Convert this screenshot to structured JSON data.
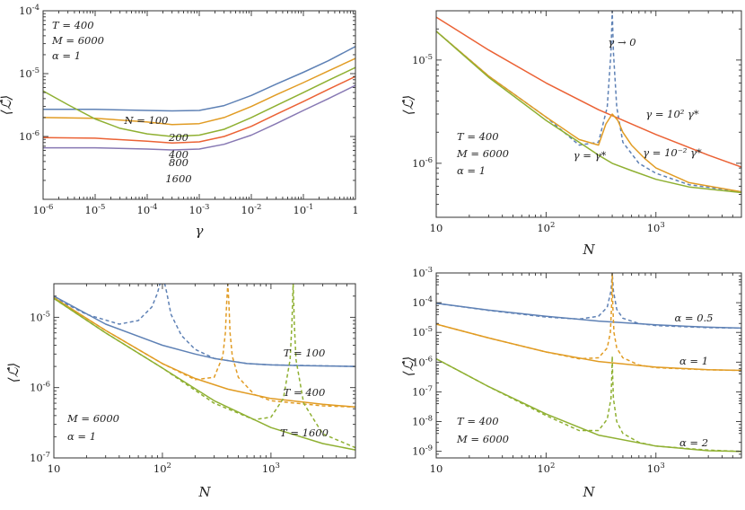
{
  "chart_data": [
    {
      "type": "line",
      "xscale": "log",
      "yscale": "log",
      "xlim": [
        1e-06,
        1
      ],
      "ylim": [
        1e-07,
        0.0001
      ],
      "xlabel": "γ",
      "ylabel": "⟨ℒ̂⟩",
      "xticks": [
        {
          "v": 1e-06,
          "b": "10",
          "e": "-6"
        },
        {
          "v": 1e-05,
          "b": "10",
          "e": "-5"
        },
        {
          "v": 0.0001,
          "b": "10",
          "e": "-4"
        },
        {
          "v": 0.001,
          "b": "10",
          "e": "-3"
        },
        {
          "v": 0.01,
          "b": "10",
          "e": "-2"
        },
        {
          "v": 0.1,
          "b": "10",
          "e": "-1"
        },
        {
          "v": 1,
          "b": "1",
          "e": ""
        }
      ],
      "yticks": [
        {
          "v": 1e-06,
          "b": "10",
          "e": "-6"
        },
        {
          "v": 1e-05,
          "b": "10",
          "e": "-5"
        },
        {
          "v": 0.0001,
          "b": "10",
          "e": "-4"
        }
      ],
      "params": [
        "T = 400",
        "M = 6000",
        "α = 1"
      ],
      "series": [
        {
          "name": "N = 100",
          "color": "#5e81b5",
          "dash": false,
          "x": [
            1e-06,
            1e-05,
            0.0001,
            0.0003,
            0.001,
            0.003,
            0.01,
            0.03,
            0.1,
            0.3,
            1
          ],
          "y": [
            2.7e-06,
            2.7e-06,
            2.6e-06,
            2.55e-06,
            2.6e-06,
            3.1e-06,
            4.5e-06,
            6.8e-06,
            1.05e-05,
            1.6e-05,
            2.7e-05
          ]
        },
        {
          "name": "200",
          "color": "#e19c24",
          "dash": false,
          "x": [
            1e-06,
            1e-05,
            0.0001,
            0.0003,
            0.001,
            0.003,
            0.01,
            0.03,
            0.1,
            0.3,
            1
          ],
          "y": [
            2e-06,
            1.95e-06,
            1.7e-06,
            1.55e-06,
            1.6e-06,
            2e-06,
            3e-06,
            4.6e-06,
            7.2e-06,
            1.1e-05,
            1.75e-05
          ]
        },
        {
          "name": "400",
          "color": "#8fb032",
          "dash": false,
          "x": [
            1e-06,
            3e-06,
            1e-05,
            3e-05,
            0.0001,
            0.0003,
            0.001,
            0.003,
            0.01,
            0.03,
            0.1,
            0.3,
            1
          ],
          "y": [
            5.3e-06,
            3.2e-06,
            1.9e-06,
            1.35e-06,
            1.1e-06,
            1e-06,
            1.05e-06,
            1.3e-06,
            2e-06,
            3.1e-06,
            5e-06,
            7.8e-06,
            1.25e-05
          ]
        },
        {
          "name": "800",
          "color": "#eb6235",
          "dash": false,
          "x": [
            1e-06,
            1e-05,
            0.0001,
            0.0003,
            0.001,
            0.003,
            0.01,
            0.03,
            0.1,
            0.3,
            1
          ],
          "y": [
            9.6e-07,
            9.4e-07,
            8.4e-07,
            7.9e-07,
            8.2e-07,
            1e-06,
            1.45e-06,
            2.25e-06,
            3.6e-06,
            5.6e-06,
            9e-06
          ]
        },
        {
          "name": "1600",
          "color": "#8778b3",
          "dash": false,
          "x": [
            1e-06,
            1e-05,
            0.0001,
            0.0003,
            0.001,
            0.003,
            0.01,
            0.03,
            0.1,
            0.3,
            1
          ],
          "y": [
            6.6e-07,
            6.6e-07,
            6.3e-07,
            6.1e-07,
            6.3e-07,
            7.5e-07,
            1.05e-06,
            1.6e-06,
            2.6e-06,
            4e-06,
            6.5e-06
          ]
        }
      ]
    },
    {
      "type": "line",
      "xscale": "log",
      "yscale": "log",
      "xlim": [
        10,
        6000
      ],
      "ylim": [
        3e-07,
        3e-05
      ],
      "xlabel": "N",
      "ylabel": "⟨ℒ̂⟩",
      "xticks": [
        {
          "v": 10,
          "b": "10",
          "e": ""
        },
        {
          "v": 100,
          "b": "10",
          "e": "2"
        },
        {
          "v": 1000,
          "b": "10",
          "e": "3"
        }
      ],
      "yticks": [
        {
          "v": 1e-06,
          "b": "10",
          "e": "-6"
        },
        {
          "v": 1e-05,
          "b": "10",
          "e": "-5"
        }
      ],
      "params": [
        "T = 400",
        "M = 6000",
        "α = 1"
      ],
      "labels": [
        "γ → 0",
        "γ = 10² γ*",
        "γ = 10⁻² γ*",
        "γ = γ*"
      ],
      "series": [
        {
          "name": "γ → 0",
          "color": "#5e81b5",
          "dash": true,
          "x": [
            10,
            30,
            100,
            200,
            300,
            360,
            390,
            400,
            410,
            440,
            500,
            700,
            1000,
            2000,
            6000
          ],
          "y": [
            1.9e-05,
            7e-06,
            2.8e-06,
            1.5e-06,
            1.6e-06,
            3.5e-06,
            1.2e-05,
            3e-05,
            1.2e-05,
            3.5e-06,
            1.6e-06,
            1e-06,
            8e-07,
            6.2e-07,
            5.3e-07
          ]
        },
        {
          "name": "γ = 10² γ*",
          "color": "#eb6235",
          "dash": false,
          "x": [
            10,
            30,
            100,
            300,
            1000,
            3000,
            6000
          ],
          "y": [
            2.6e-05,
            1.25e-05,
            6e-06,
            3.3e-06,
            1.9e-06,
            1.2e-06,
            9.2e-07
          ]
        },
        {
          "name": "γ = 10⁻² γ*",
          "color": "#e19c24",
          "dash": false,
          "x": [
            10,
            30,
            100,
            200,
            300,
            350,
            400,
            450,
            500,
            600,
            800,
            1000,
            2000,
            6000
          ],
          "y": [
            1.9e-05,
            7e-06,
            2.8e-06,
            1.7e-06,
            1.5e-06,
            2.4e-06,
            3e-06,
            2.6e-06,
            2e-06,
            1.5e-06,
            1.1e-06,
            9e-07,
            6.5e-07,
            5.3e-07
          ]
        },
        {
          "name": "γ = γ*",
          "color": "#8fb032",
          "dash": false,
          "x": [
            10,
            30,
            100,
            200,
            300,
            400,
            600,
            1000,
            2000,
            6000
          ],
          "y": [
            1.9e-05,
            6.8e-06,
            2.6e-06,
            1.6e-06,
            1.2e-06,
            1e-06,
            8.5e-07,
            7e-07,
            5.9e-07,
            5.2e-07
          ]
        }
      ]
    },
    {
      "type": "line",
      "xscale": "log",
      "yscale": "log",
      "xlim": [
        10,
        6000
      ],
      "ylim": [
        1e-07,
        3e-05
      ],
      "xlabel": "N",
      "ylabel": "⟨ℒ̂⟩",
      "xticks": [
        {
          "v": 10,
          "b": "10",
          "e": ""
        },
        {
          "v": 100,
          "b": "10",
          "e": "2"
        },
        {
          "v": 1000,
          "b": "10",
          "e": "3"
        }
      ],
      "yticks": [
        {
          "v": 1e-07,
          "b": "10",
          "e": "-7"
        },
        {
          "v": 1e-06,
          "b": "10",
          "e": "-6"
        },
        {
          "v": 1e-05,
          "b": "10",
          "e": "-5"
        }
      ],
      "params": [
        "M = 6000",
        "α = 1"
      ],
      "labels": [
        "T = 100",
        "T = 400",
        "T = 1600"
      ],
      "series": [
        {
          "name": "T = 100",
          "color": "#5e81b5",
          "dash": false,
          "x": [
            10,
            30,
            100,
            200,
            300,
            600,
            1000,
            2000,
            6000
          ],
          "y": [
            2e-05,
            8e-06,
            4e-06,
            3e-06,
            2.6e-06,
            2.2e-06,
            2.1e-06,
            2.05e-06,
            2e-06
          ]
        },
        {
          "name": "",
          "color": "#5e81b5",
          "dash": true,
          "x": [
            10,
            20,
            40,
            60,
            80,
            90,
            95,
            100,
            105,
            110,
            120,
            150,
            200,
            300,
            600,
            1000,
            6000
          ],
          "y": [
            1.9e-05,
            1.1e-05,
            8e-06,
            9e-06,
            1.4e-05,
            2.2e-05,
            3e-05,
            3e-05,
            3e-05,
            2.2e-05,
            1.1e-05,
            5.5e-06,
            3.5e-06,
            2.6e-06,
            2.2e-06,
            2.1e-06,
            2e-06
          ]
        },
        {
          "name": "T = 400",
          "color": "#e19c24",
          "dash": false,
          "x": [
            10,
            30,
            100,
            200,
            400,
            1000,
            3000,
            6000
          ],
          "y": [
            1.9e-05,
            6.5e-06,
            2.2e-06,
            1.35e-06,
            9.5e-07,
            7e-07,
            5.8e-07,
            5.3e-07
          ]
        },
        {
          "name": "",
          "color": "#e19c24",
          "dash": true,
          "x": [
            10,
            30,
            100,
            200,
            300,
            360,
            380,
            390,
            400,
            410,
            420,
            440,
            500,
            700,
            1000,
            3000,
            6000
          ],
          "y": [
            1.9e-05,
            6.5e-06,
            2.2e-06,
            1.3e-06,
            1.4e-06,
            2.8e-06,
            6e-06,
            1.5e-05,
            3e-05,
            1.5e-05,
            6e-06,
            2.8e-06,
            1.4e-06,
            8e-07,
            6.5e-07,
            5.5e-07,
            5.3e-07
          ]
        },
        {
          "name": "T = 1600",
          "color": "#8fb032",
          "dash": false,
          "x": [
            10,
            30,
            100,
            300,
            1000,
            3000,
            6000
          ],
          "y": [
            1.85e-05,
            6e-06,
            1.9e-06,
            6.5e-07,
            2.7e-07,
            1.6e-07,
            1.3e-07
          ]
        },
        {
          "name": "",
          "color": "#8fb032",
          "dash": true,
          "x": [
            10,
            30,
            100,
            300,
            700,
            1000,
            1300,
            1500,
            1560,
            1600,
            1640,
            1700,
            2000,
            3000,
            6000
          ],
          "y": [
            1.85e-05,
            6e-06,
            1.9e-06,
            6e-07,
            3.5e-07,
            3.8e-07,
            7e-07,
            2.5e-06,
            8e-06,
            3e-05,
            8e-06,
            2.5e-06,
            6e-07,
            2.2e-07,
            1.4e-07
          ]
        }
      ]
    },
    {
      "type": "line",
      "xscale": "log",
      "yscale": "log",
      "xlim": [
        10,
        6000
      ],
      "ylim": [
        6e-10,
        0.001
      ],
      "xlabel": "N",
      "ylabel": "⟨ℒ̂⟩",
      "xticks": [
        {
          "v": 10,
          "b": "10",
          "e": ""
        },
        {
          "v": 100,
          "b": "10",
          "e": "2"
        },
        {
          "v": 1000,
          "b": "10",
          "e": "3"
        }
      ],
      "yticks": [
        {
          "v": 1e-09,
          "b": "10",
          "e": "-9"
        },
        {
          "v": 1e-08,
          "b": "10",
          "e": "-8"
        },
        {
          "v": 1e-07,
          "b": "10",
          "e": "-7"
        },
        {
          "v": 1e-06,
          "b": "10",
          "e": "-6"
        },
        {
          "v": 1e-05,
          "b": "10",
          "e": "-5"
        },
        {
          "v": 0.0001,
          "b": "10",
          "e": "-4"
        },
        {
          "v": 0.001,
          "b": "10",
          "e": "-3"
        }
      ],
      "params": [
        "T = 400",
        "M = 6000"
      ],
      "labels": [
        "α = 0.5",
        "α = 1",
        "α = 2"
      ],
      "series": [
        {
          "name": "α = 0.5",
          "color": "#5e81b5",
          "dash": false,
          "x": [
            10,
            30,
            100,
            300,
            1000,
            3000,
            6000
          ],
          "y": [
            9.5e-05,
            5.6e-05,
            3.5e-05,
            2.4e-05,
            1.8e-05,
            1.5e-05,
            1.4e-05
          ]
        },
        {
          "name": "",
          "color": "#5e81b5",
          "dash": true,
          "x": [
            10,
            30,
            100,
            200,
            300,
            360,
            390,
            400,
            410,
            440,
            500,
            700,
            1000,
            3000,
            6000
          ],
          "y": [
            9.5e-05,
            5.5e-05,
            3.3e-05,
            2.8e-05,
            3.5e-05,
            7e-05,
            0.00025,
            0.001,
            0.00025,
            6e-05,
            3e-05,
            2e-05,
            1.7e-05,
            1.45e-05,
            1.4e-05
          ]
        },
        {
          "name": "α = 1",
          "color": "#e19c24",
          "dash": false,
          "x": [
            10,
            30,
            100,
            300,
            1000,
            3000,
            6000
          ],
          "y": [
            1.9e-05,
            6.5e-06,
            2.2e-06,
            1.05e-06,
            6.8e-07,
            5.6e-07,
            5.3e-07
          ]
        },
        {
          "name": "",
          "color": "#e19c24",
          "dash": true,
          "x": [
            10,
            30,
            100,
            200,
            300,
            360,
            385,
            395,
            400,
            405,
            415,
            440,
            500,
            700,
            1000,
            3000,
            6000
          ],
          "y": [
            1.9e-05,
            6.5e-06,
            2.2e-06,
            1.3e-06,
            1.4e-06,
            3e-06,
            1e-05,
            8e-05,
            0.001,
            8e-05,
            1e-05,
            3e-06,
            1.4e-06,
            8e-07,
            6.5e-07,
            5.5e-07,
            5.3e-07
          ]
        },
        {
          "name": "α = 2",
          "color": "#8fb032",
          "dash": false,
          "x": [
            10,
            30,
            100,
            300,
            1000,
            3000,
            6000
          ],
          "y": [
            1.3e-06,
            1.5e-07,
            1.8e-08,
            3.5e-09,
            1.5e-09,
            1.05e-09,
            1e-09
          ]
        },
        {
          "name": "",
          "color": "#8fb032",
          "dash": true,
          "x": [
            10,
            30,
            100,
            200,
            300,
            360,
            390,
            397,
            400,
            403,
            410,
            440,
            500,
            700,
            1000,
            3000,
            6000
          ],
          "y": [
            1.3e-06,
            1.5e-07,
            1.6e-08,
            5e-09,
            5e-09,
            1.2e-08,
            6e-08,
            4e-07,
            1.6e-06,
            4e-07,
            6e-08,
            1e-08,
            4e-09,
            2e-09,
            1.5e-09,
            1.1e-09,
            1e-09
          ]
        }
      ]
    }
  ]
}
